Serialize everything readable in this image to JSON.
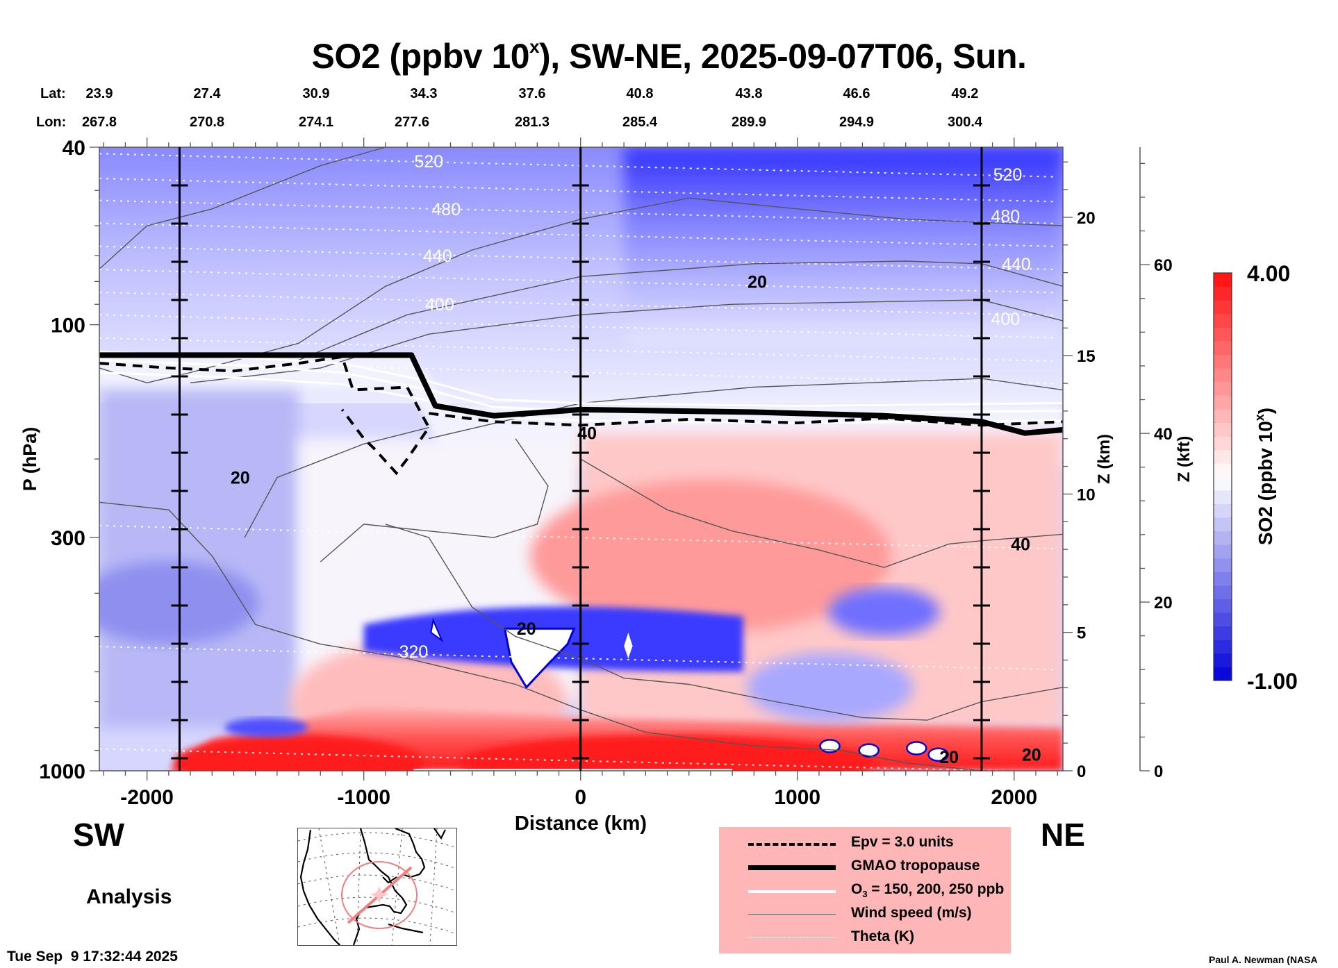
{
  "title": {
    "prefix": "SO2 (ppbv 10",
    "sup": "x",
    "suffix": "), SW-NE, 2025-09-07T06, Sun."
  },
  "coords": {
    "lat_label": "Lat:",
    "lon_label": "Lon:",
    "lat": [
      "23.9",
      "27.4",
      "30.9",
      "34.3",
      "37.6",
      "40.8",
      "43.8",
      "46.6",
      "49.2"
    ],
    "lon": [
      "267.8",
      "270.8",
      "274.1",
      "277.6",
      "281.3",
      "285.4",
      "289.9",
      "294.9",
      "300.4"
    ]
  },
  "direction": {
    "left": "SW",
    "right": "NE"
  },
  "run_type": "Analysis",
  "timestamp": "Tue Sep  9 17:32:44 2025",
  "credit": "Paul A. Newman (NASA",
  "legend": {
    "items": [
      {
        "label": "Epv = 3.0 units",
        "style": "dashed"
      },
      {
        "label": "GMAO tropopause",
        "style": "thick"
      },
      {
        "label_main": "O",
        "label_sub": "3",
        "label_rest": " = 150, 200, 250 ppb",
        "style": "white"
      },
      {
        "label": "Wind speed (m/s)",
        "style": "thin"
      },
      {
        "label": "Theta (K)",
        "style": "dotted"
      }
    ]
  },
  "colors": {
    "high": "#ff0000",
    "mid": "#ffffff",
    "low": "#0000ff",
    "legend_bg": "#ffb6b6",
    "map_track": "#f08080"
  },
  "chart_data": {
    "type": "heatmap",
    "title": "SO2 (ppbv 10^x), SW-NE, 2025-09-07T06, Sun.",
    "xlabel": "Distance (km)",
    "ylabel": "P (hPa)",
    "y2label": "Z (km)",
    "y3label": "Z (kft)",
    "xlim": [
      -2220,
      2225
    ],
    "ylim": [
      1000,
      40
    ],
    "y_scale": "log",
    "x_ticks": [
      -2000,
      -1000,
      0,
      1000,
      2000
    ],
    "x_tick_labels": [
      "-2000",
      "-1000",
      "0",
      "1000",
      "2000"
    ],
    "y_ticks": [
      40,
      100,
      300,
      1000
    ],
    "y_tick_labels": [
      "40",
      "100",
      "300",
      "1000"
    ],
    "z_km_ticks": [
      0,
      5,
      10,
      15,
      20
    ],
    "z_km_tick_labels": [
      "0",
      "5",
      "10",
      "15",
      "20"
    ],
    "z_kft_ticks": [
      0,
      20,
      40,
      60
    ],
    "z_kft_tick_labels": [
      "0",
      "20",
      "40",
      "60"
    ],
    "vertical_markers_km": [
      -1850,
      0,
      1850
    ],
    "colorbar": {
      "label": "SO2 (ppbv 10^x)",
      "label_main": "SO2 (ppbv 10",
      "label_sup": "x",
      "label_end": ")",
      "min": -1.0,
      "max": 4.0,
      "min_label": "-1.00",
      "max_label": "4.00",
      "levels": 30
    },
    "theta_labels": [
      {
        "value": "520",
        "x_km": -700,
        "p": 43
      },
      {
        "value": "480",
        "x_km": -620,
        "p": 55
      },
      {
        "value": "440",
        "x_km": -660,
        "p": 70
      },
      {
        "value": "400",
        "x_km": -650,
        "p": 90
      },
      {
        "value": "520",
        "x_km": 1970,
        "p": 46
      },
      {
        "value": "480",
        "x_km": 1960,
        "p": 57
      },
      {
        "value": "440",
        "x_km": 2010,
        "p": 73
      },
      {
        "value": "400",
        "x_km": 1960,
        "p": 97
      },
      {
        "value": "320",
        "x_km": -770,
        "p": 540
      }
    ],
    "wind_labels": [
      {
        "value": "20",
        "x_km": 815,
        "p": 80
      },
      {
        "value": "20",
        "x_km": -1570,
        "p": 220
      },
      {
        "value": "20",
        "x_km": -250,
        "p": 480
      },
      {
        "value": "40",
        "x_km": 30,
        "p": 175
      },
      {
        "value": "40",
        "x_km": 2030,
        "p": 310
      },
      {
        "value": "20",
        "x_km": 1700,
        "p": 930
      },
      {
        "value": "20",
        "x_km": 2080,
        "p": 920
      }
    ],
    "theta_levels_K": [
      320,
      400,
      440,
      480,
      520
    ],
    "wind_levels_ms": [
      20,
      40
    ],
    "tropopause_hPa_approx": [
      {
        "x_km": -2220,
        "p": 117
      },
      {
        "x_km": -780,
        "p": 117
      },
      {
        "x_km": -670,
        "p": 152
      },
      {
        "x_km": -400,
        "p": 160
      },
      {
        "x_km": 0,
        "p": 155
      },
      {
        "x_km": 800,
        "p": 157
      },
      {
        "x_km": 1400,
        "p": 160
      },
      {
        "x_km": 1850,
        "p": 165
      },
      {
        "x_km": 2050,
        "p": 175
      },
      {
        "x_km": 2225,
        "p": 172
      }
    ],
    "so2_features": [
      {
        "desc": "stratosphere low values (blue), decreasing with height",
        "x_km": [
          -2220,
          2225
        ],
        "p": [
          40,
          150
        ],
        "value_approx": -0.3
      },
      {
        "desc": "boundary-layer high values (red)",
        "x_km": [
          -1600,
          2225
        ],
        "p": [
          750,
          1000
        ],
        "value_approx": 3.5
      },
      {
        "desc": "mid-troposphere enhanced (light red)",
        "x_km": [
          0,
          1900
        ],
        "p": [
          180,
          500
        ],
        "value_approx": 2.2
      },
      {
        "desc": "blue band minimum",
        "x_km": [
          -1000,
          800
        ],
        "p": [
          420,
          560
        ],
        "value_approx": -0.8
      }
    ]
  }
}
